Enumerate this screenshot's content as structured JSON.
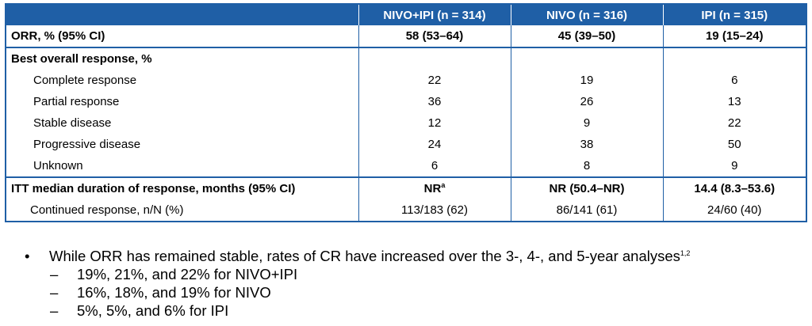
{
  "table": {
    "columns": [
      "",
      "NIVO+IPI (n = 314)",
      "NIVO (n = 316)",
      "IPI (n = 315)"
    ],
    "orr": {
      "label": "ORR, % (95% CI)",
      "values": [
        "58 (53–64)",
        "45 (39–50)",
        "19 (15–24)"
      ]
    },
    "bor_header": "Best overall response, %",
    "bor_rows": [
      {
        "label": "Complete response",
        "values": [
          "22",
          "19",
          "6"
        ]
      },
      {
        "label": "Partial response",
        "values": [
          "36",
          "26",
          "13"
        ]
      },
      {
        "label": "Stable disease",
        "values": [
          "12",
          "9",
          "22"
        ]
      },
      {
        "label": "Progressive disease",
        "values": [
          "24",
          "38",
          "50"
        ]
      },
      {
        "label": "Unknown",
        "values": [
          "6",
          "8",
          "9"
        ]
      }
    ],
    "dor": {
      "label": "ITT median duration of response, months (95% CI)",
      "values": [
        "NR",
        "NR (50.4–NR)",
        "14.4 (8.3–53.6)"
      ],
      "footnote_mark": "a"
    },
    "continued": {
      "label": "Continued response, n/N (%)",
      "values": [
        "113/183 (62)",
        "86/141 (61)",
        "24/60 (40)"
      ]
    }
  },
  "bullets": {
    "marker": "•",
    "main": "While ORR has remained stable, rates of CR have increased over the 3-, 4-, and 5-year analyses",
    "main_sup": "1,2",
    "dash": "–",
    "subs": [
      "19%, 21%, and 22% for NIVO+IPI",
      "16%, 18%, and 19% for NIVO",
      "5%, 5%, and 6% for IPI"
    ]
  }
}
